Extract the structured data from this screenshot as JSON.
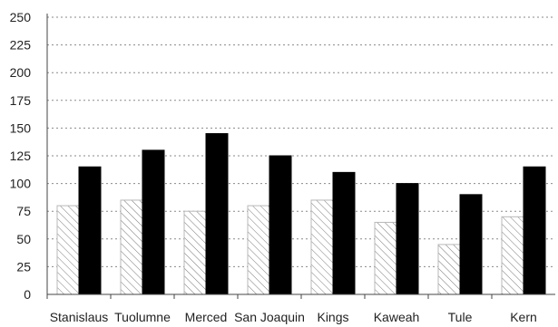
{
  "chart_data": {
    "type": "bar",
    "title": "",
    "xlabel": "",
    "ylabel": "",
    "ylim": [
      0,
      250
    ],
    "yticks": [
      0,
      25,
      50,
      75,
      100,
      125,
      150,
      175,
      200,
      225,
      250
    ],
    "grid": true,
    "legend": "none",
    "categories": [
      "Stanislaus",
      "Tuolumne",
      "Merced",
      "San Joaquin",
      "Kings",
      "Kaweah",
      "Tule",
      "Kern"
    ],
    "series": [
      {
        "values": [
          80,
          85,
          75,
          80,
          85,
          65,
          45,
          70
        ],
        "color": "#ffffff",
        "pattern": "diagonal-hatch"
      },
      {
        "values": [
          115,
          130,
          145,
          125,
          110,
          100,
          90,
          115
        ],
        "color": "#000000",
        "pattern": "solid"
      }
    ]
  }
}
